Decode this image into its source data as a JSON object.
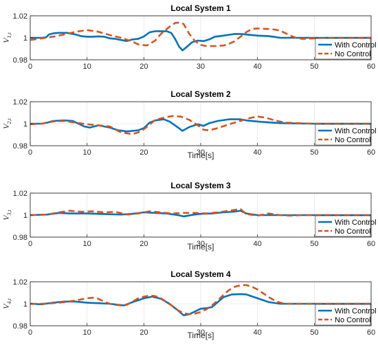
{
  "chart_data": [
    {
      "type": "line",
      "title": "Local System 1",
      "xlabel": "",
      "ylabel": "V1,t",
      "ylabel_main": "V",
      "ylabel_sub": "1,t",
      "xlim": [
        0,
        60
      ],
      "ylim": [
        0.98,
        1.02
      ],
      "xticks": [
        0,
        10,
        20,
        30,
        40,
        50,
        60
      ],
      "xtick_labels": [
        "0",
        "10",
        "20",
        "30",
        "40",
        "50",
        "60"
      ],
      "yticks": [
        0.98,
        1,
        1.02
      ],
      "ytick_labels": [
        "0.98",
        "1",
        "1.02"
      ],
      "grid": true,
      "legend": "bottom-right",
      "series": [
        {
          "name": "With Control",
          "color": "#0072BD",
          "style": "solid",
          "x": [
            0,
            2,
            2.8,
            3.3,
            4,
            5,
            6.5,
            8,
            9,
            10,
            11,
            12,
            13,
            14,
            15,
            16,
            17,
            17.5,
            18,
            19,
            20,
            21,
            22,
            23,
            24,
            24.8,
            25.5,
            26.2,
            26.8,
            27.5,
            28.5,
            29.5,
            30.5,
            31.5,
            32.5,
            34,
            36,
            37,
            38,
            40,
            42,
            43,
            44,
            50,
            55,
            60
          ],
          "y": [
            1.0,
            1.0,
            1.0005,
            1.003,
            1.004,
            1.0045,
            1.0045,
            1.003,
            1.0015,
            1.001,
            1.001,
            1.0013,
            1.001,
            0.9995,
            0.999,
            0.998,
            0.997,
            0.9978,
            0.9985,
            0.999,
            1.0012,
            1.005,
            1.006,
            1.006,
            1.006,
            1.0045,
            0.999,
            0.992,
            0.9885,
            0.9915,
            0.996,
            0.9975,
            0.997,
            0.9985,
            1.001,
            1.002,
            1.0035,
            1.0035,
            1.003,
            1.002,
            1.0015,
            1.0008,
            1.0,
            1.0,
            1.0,
            1.0
          ]
        },
        {
          "name": "No Control",
          "color": "#D95319",
          "style": "dashed",
          "x": [
            0,
            2,
            4,
            6,
            8,
            10,
            12,
            14,
            16,
            18,
            19,
            20.5,
            22,
            23,
            24.5,
            25.5,
            26.5,
            27,
            28,
            29,
            30,
            31,
            32.5,
            34,
            35,
            36,
            37,
            38,
            39,
            40,
            42,
            43,
            44,
            45,
            46,
            47,
            48,
            50,
            55,
            60
          ],
          "y": [
            0.998,
            0.9995,
            1.001,
            1.003,
            1.0055,
            1.007,
            1.0055,
            1.0025,
            1.0,
            0.9965,
            0.994,
            0.993,
            0.9975,
            1.0035,
            1.01,
            1.0135,
            1.014,
            1.0125,
            1.0035,
            0.997,
            0.9935,
            0.9925,
            0.9925,
            0.993,
            0.9945,
            0.997,
            1.001,
            1.005,
            1.008,
            1.0085,
            1.008,
            1.0075,
            1.0065,
            1.004,
            1.0015,
            0.9995,
            0.999,
            0.9995,
            1.0,
            1.0
          ]
        }
      ]
    },
    {
      "type": "line",
      "title": "Local System 2",
      "xlabel": "Time[s]",
      "ylabel": "V2,t",
      "ylabel_main": "V",
      "ylabel_sub": "2,t",
      "xlim": [
        0,
        60
      ],
      "ylim": [
        0.98,
        1.02
      ],
      "xticks": [
        0,
        10,
        20,
        30,
        40,
        50,
        60
      ],
      "xtick_labels": [
        "0",
        "10",
        "20",
        "30",
        "40",
        "50",
        "60"
      ],
      "yticks": [
        0.98,
        1,
        1.02
      ],
      "ytick_labels": [
        "0.98",
        "1",
        "1.02"
      ],
      "grid": true,
      "legend": "bottom-right",
      "series": [
        {
          "name": "With Control",
          "color": "#0072BD",
          "style": "solid",
          "x": [
            0,
            2,
            3,
            4,
            6,
            7.5,
            8.5,
            9.5,
            10.5,
            12,
            14,
            15.5,
            17,
            18,
            19,
            20,
            21,
            22,
            23.5,
            24.5,
            25.5,
            26.8,
            28,
            29.5,
            30.5,
            31.5,
            33,
            35,
            37,
            38,
            40,
            42,
            44,
            50,
            55,
            60
          ],
          "y": [
            1.0,
            1.0,
            1.001,
            1.0025,
            1.003,
            1.0025,
            1.0,
            0.9975,
            0.9965,
            0.9985,
            0.9965,
            0.994,
            0.993,
            0.9935,
            0.994,
            0.996,
            1.001,
            1.003,
            1.004,
            1.002,
            0.9985,
            0.9935,
            0.997,
            0.9995,
            0.998,
            1.0005,
            1.0025,
            1.004,
            1.004,
            1.003,
            1.002,
            1.0012,
            1.0005,
            1.0,
            1.0,
            1.0
          ]
        },
        {
          "name": "No Control",
          "color": "#D95319",
          "style": "dashed",
          "x": [
            0,
            2,
            4,
            6,
            8,
            10,
            12,
            14,
            16,
            18,
            19.5,
            20.5,
            22,
            23.5,
            25,
            26.5,
            28,
            29.5,
            30.5,
            31.5,
            33,
            35,
            37,
            38.5,
            40,
            41.5,
            43,
            45,
            47,
            50,
            55,
            60
          ],
          "y": [
            0.9995,
            1.0,
            1.002,
            1.0025,
            1.001,
            0.9995,
            0.9985,
            0.9975,
            0.992,
            0.9905,
            0.993,
            0.997,
            1.0035,
            1.0055,
            1.007,
            1.0065,
            1.0035,
            0.9985,
            0.9945,
            0.994,
            0.996,
            0.9995,
            1.0025,
            1.005,
            1.0065,
            1.0055,
            1.003,
            1.001,
            1.0005,
            1.0,
            1.0,
            1.0
          ]
        }
      ]
    },
    {
      "type": "line",
      "title": "Local System 3",
      "xlabel": "Time[s]",
      "ylabel": "V3,t",
      "ylabel_main": "V",
      "ylabel_sub": "3,t",
      "xlim": [
        0,
        60
      ],
      "ylim": [
        0.98,
        1.02
      ],
      "xticks": [
        0,
        10,
        20,
        30,
        40,
        50,
        60
      ],
      "xtick_labels": [
        "0",
        "10",
        "20",
        "30",
        "40",
        "50",
        "60"
      ],
      "yticks": [
        0.98,
        1,
        1.02
      ],
      "ytick_labels": [
        "0.98",
        "1",
        "1.02"
      ],
      "grid": true,
      "legend": "bottom-right",
      "series": [
        {
          "name": "With Control",
          "color": "#0072BD",
          "style": "solid",
          "x": [
            0,
            3,
            5,
            7,
            10,
            13,
            16,
            18,
            20,
            22,
            24,
            26,
            27,
            28.5,
            30,
            32,
            34,
            36,
            37,
            38,
            40,
            45,
            50,
            55,
            60
          ],
          "y": [
            1.0,
            1.0005,
            1.002,
            1.0015,
            1.0015,
            1.001,
            1.0005,
            1.0012,
            1.0025,
            1.002,
            1.0015,
            1.0,
            0.9988,
            1.0002,
            1.0012,
            1.0015,
            1.0025,
            1.0032,
            1.004,
            1.0015,
            1.0,
            1.0,
            1.0,
            1.0,
            1.0
          ]
        },
        {
          "name": "No Control",
          "color": "#D95319",
          "style": "dashed",
          "x": [
            0,
            3,
            5,
            7,
            9,
            11,
            13,
            15,
            17,
            19,
            21,
            23,
            25,
            27,
            29,
            31,
            33,
            35,
            37,
            38,
            40,
            42,
            44,
            46,
            48,
            50,
            55,
            60
          ],
          "y": [
            1.0,
            1.0005,
            1.0025,
            1.004,
            1.003,
            1.0035,
            1.0025,
            1.003,
            1.0005,
            1.0015,
            1.0035,
            1.0025,
            1.0015,
            1.002,
            1.002,
            1.0015,
            1.0025,
            1.004,
            1.0055,
            1.001,
            0.9995,
            1.0015,
            1.0,
            0.9995,
            1.0,
            1.0,
            1.0,
            1.0
          ]
        }
      ]
    },
    {
      "type": "line",
      "title": "Local System 4",
      "xlabel": "Time[s]",
      "ylabel": "V4,t",
      "ylabel_main": "V",
      "ylabel_sub": "4,t",
      "xlim": [
        0,
        60
      ],
      "ylim": [
        0.98,
        1.02
      ],
      "xticks": [
        0,
        10,
        20,
        30,
        40,
        50,
        60
      ],
      "xtick_labels": [
        "0",
        "10",
        "20",
        "30",
        "40",
        "50",
        "60"
      ],
      "yticks": [
        0.98,
        1,
        1.02
      ],
      "ytick_labels": [
        "0.98",
        "1",
        "1.02"
      ],
      "grid": true,
      "legend": "bottom-right",
      "series": [
        {
          "name": "With Control",
          "color": "#0072BD",
          "style": "solid",
          "x": [
            0,
            2,
            4,
            6,
            8,
            10,
            12,
            14,
            15.5,
            16.5,
            18,
            20,
            21.5,
            23,
            24.5,
            26,
            27,
            28,
            29,
            30,
            31,
            32,
            33,
            34,
            35.5,
            37,
            38,
            40,
            42,
            44,
            50,
            55,
            60
          ],
          "y": [
            1.0,
            0.9995,
            1.001,
            1.002,
            1.002,
            1.001,
            1.0005,
            1.0,
            0.999,
            0.9985,
            1.0015,
            1.005,
            1.0065,
            1.0045,
            1.0,
            0.994,
            0.9895,
            0.9905,
            0.993,
            0.9955,
            0.996,
            0.997,
            1.0015,
            1.006,
            1.0085,
            1.0088,
            1.0085,
            1.005,
            1.0015,
            1.0,
            1.0,
            1.0,
            1.0
          ]
        },
        {
          "name": "No Control",
          "color": "#D95319",
          "style": "dashed",
          "x": [
            0,
            2,
            4,
            6,
            8,
            10,
            11,
            12,
            13,
            14,
            15,
            16,
            17,
            18,
            19,
            20,
            21,
            22,
            23,
            24,
            25,
            26,
            27,
            28,
            29,
            30,
            31,
            32,
            33,
            34,
            35,
            36,
            37,
            38,
            39,
            40,
            41,
            42,
            43,
            44,
            45,
            50,
            55,
            60
          ],
          "y": [
            1.0,
            1.0,
            1.0005,
            1.0015,
            1.003,
            1.005,
            1.0055,
            1.0045,
            1.002,
            1.0,
            0.999,
            0.9985,
            0.999,
            1.002,
            1.005,
            1.0065,
            1.0075,
            1.007,
            1.005,
            1.0015,
            0.998,
            0.994,
            0.9915,
            0.9905,
            0.991,
            0.9925,
            0.995,
            0.9985,
            1.003,
            1.008,
            1.0125,
            1.0155,
            1.0168,
            1.017,
            1.0155,
            1.013,
            1.0095,
            1.006,
            1.003,
            1.001,
            1.0,
            1.0,
            1.0,
            1.0
          ]
        }
      ]
    }
  ]
}
